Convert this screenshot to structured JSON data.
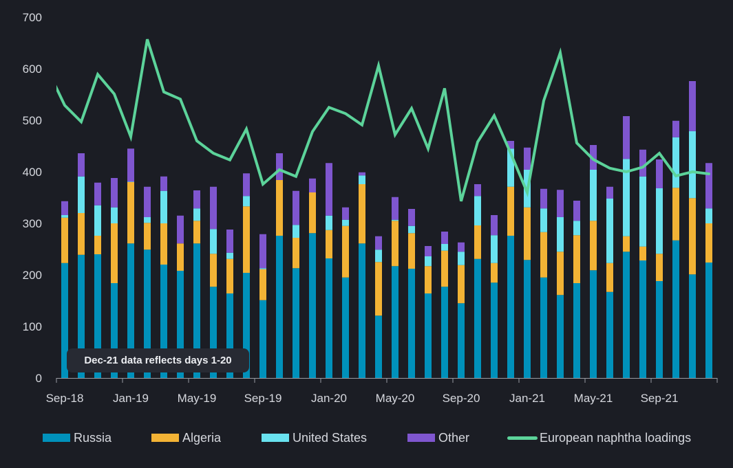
{
  "chart_data": {
    "type": "bar",
    "stacked": true,
    "title": "",
    "xlabel": "",
    "ylabel": "",
    "ylim": [
      0,
      700
    ],
    "yticks": [
      0,
      100,
      200,
      300,
      400,
      500,
      600,
      700
    ],
    "xtick_labels": [
      "Sep-18",
      "Jan-19",
      "May-19",
      "Sep-19",
      "Jan-20",
      "May-20",
      "Sep-20",
      "Jan-21",
      "May-21",
      "Sep-21"
    ],
    "grid": false,
    "legend_position": "bottom",
    "categories": [
      "Sep-18",
      "Oct-18",
      "Nov-18",
      "Dec-18",
      "Jan-19",
      "Feb-19",
      "Mar-19",
      "Apr-19",
      "May-19",
      "Jun-19",
      "Jul-19",
      "Aug-19",
      "Sep-19",
      "Oct-19",
      "Nov-19",
      "Dec-19",
      "Jan-20",
      "Feb-20",
      "Mar-20",
      "Apr-20",
      "May-20",
      "Jun-20",
      "Jul-20",
      "Aug-20",
      "Sep-20",
      "Oct-20",
      "Nov-20",
      "Dec-20",
      "Jan-21",
      "Feb-21",
      "Mar-21",
      "Apr-21",
      "May-21",
      "Jun-21",
      "Jul-21",
      "Aug-21",
      "Sep-21",
      "Oct-21",
      "Nov-21",
      "Dec-21"
    ],
    "series": [
      {
        "name": "Russia",
        "kind": "bar",
        "color": "#0091bb",
        "values": [
          223,
          239,
          240,
          184,
          261,
          249,
          220,
          208,
          261,
          177,
          164,
          204,
          151,
          276,
          213,
          281,
          232,
          195,
          261,
          121,
          217,
          212,
          164,
          177,
          145,
          231,
          185,
          276,
          229,
          195,
          161,
          184,
          209,
          167,
          245,
          228,
          188,
          267,
          201,
          224
        ]
      },
      {
        "name": "Algeria",
        "kind": "bar",
        "color": "#f3b335",
        "values": [
          88,
          81,
          36,
          116,
          119,
          52,
          80,
          53,
          44,
          64,
          67,
          129,
          60,
          108,
          59,
          79,
          55,
          100,
          115,
          104,
          88,
          69,
          53,
          70,
          74,
          65,
          38,
          95,
          102,
          88,
          84,
          93,
          96,
          56,
          30,
          27,
          53,
          102,
          148,
          76
        ]
      },
      {
        "name": "United States",
        "kind": "bar",
        "color": "#69e2ef",
        "values": [
          5,
          71,
          59,
          31,
          1,
          11,
          63,
          0,
          24,
          48,
          12,
          20,
          2,
          0,
          25,
          0,
          28,
          12,
          17,
          24,
          2,
          14,
          19,
          13,
          26,
          57,
          54,
          74,
          73,
          46,
          67,
          28,
          99,
          125,
          150,
          136,
          127,
          98,
          130,
          29
        ]
      },
      {
        "name": "Other",
        "kind": "bar",
        "color": "#7f56cf",
        "values": [
          27,
          45,
          44,
          57,
          64,
          59,
          28,
          54,
          35,
          82,
          45,
          44,
          66,
          52,
          66,
          27,
          102,
          24,
          6,
          26,
          44,
          33,
          20,
          24,
          18,
          23,
          39,
          15,
          43,
          38,
          53,
          39,
          48,
          23,
          83,
          52,
          56,
          32,
          97,
          88
        ]
      },
      {
        "name": "European naphtha loadings",
        "kind": "line",
        "color": "#5cd39a",
        "values": [
          529,
          497,
          589,
          551,
          468,
          657,
          555,
          541,
          460,
          436,
          423,
          483,
          376,
          404,
          391,
          478,
          525,
          513,
          491,
          606,
          472,
          523,
          445,
          562,
          343,
          458,
          509,
          436,
          360,
          538,
          631,
          456,
          424,
          407,
          400,
          409,
          436,
          392,
          400,
          396
        ],
        "prior_value_clipped": 596
      }
    ],
    "annotation": "Dec-21 data reflects days 1-20"
  },
  "legend": [
    {
      "label": "Russia",
      "color": "#0091bb",
      "type": "box"
    },
    {
      "label": "Algeria",
      "color": "#f3b335",
      "type": "box"
    },
    {
      "label": "United States",
      "color": "#69e2ef",
      "type": "box"
    },
    {
      "label": "Other",
      "color": "#7f56cf",
      "type": "box"
    },
    {
      "label": "European naphtha loadings",
      "color": "#5cd39a",
      "type": "line"
    }
  ],
  "colors": {
    "background": "#1b1d24",
    "axis": "#9a9ca3",
    "text": "#d6d8de",
    "annotation_bg": "#272a33"
  }
}
